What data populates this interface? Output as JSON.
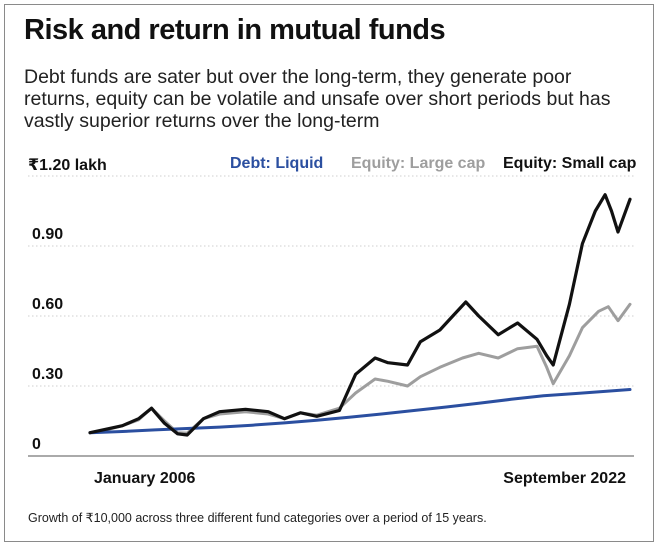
{
  "header": {
    "title": "Risk and return in mutual funds",
    "subtitle": "Debt funds are sater but over the long-term, they generate poor returns, equity can be volatile and unsafe over short periods but has vastly superior returns over the long-term"
  },
  "caption": "Growth of ₹10,000 across three different fund categories over a period of 15 years.",
  "chart_data": {
    "type": "line",
    "title": "Risk and return in mutual funds",
    "ylabel": "₹1.20 lakh",
    "ylim": [
      0,
      1.2
    ],
    "y_ticks": [
      0,
      0.3,
      0.6,
      0.9
    ],
    "y_tick_labels": [
      "0",
      "0.30",
      "0.60",
      "0.90"
    ],
    "top_tick_label": "₹1.20 lakh",
    "x_range": [
      2006.0,
      2022.67
    ],
    "x_tick_labels": [
      "January 2006",
      "September 2022"
    ],
    "grid": true,
    "legend": "top",
    "series": [
      {
        "name": "Debt: Liquid",
        "color": "#2b4fa0",
        "x": [
          2006.0,
          2007.0,
          2008.0,
          2009.0,
          2010.0,
          2011.0,
          2012.0,
          2013.0,
          2014.0,
          2015.0,
          2016.0,
          2017.0,
          2018.0,
          2019.0,
          2020.0,
          2021.0,
          2022.0,
          2022.67
        ],
        "values": [
          0.1,
          0.105,
          0.112,
          0.118,
          0.124,
          0.132,
          0.142,
          0.153,
          0.166,
          0.18,
          0.195,
          0.21,
          0.226,
          0.243,
          0.258,
          0.268,
          0.278,
          0.285
        ]
      },
      {
        "name": "Equity: Large cap",
        "color": "#9e9e9e",
        "x": [
          2006.0,
          2006.5,
          2007.0,
          2007.5,
          2007.9,
          2008.3,
          2008.7,
          2009.0,
          2009.5,
          2010.0,
          2010.8,
          2011.5,
          2012.0,
          2012.5,
          2013.0,
          2013.7,
          2014.2,
          2014.8,
          2015.2,
          2015.8,
          2016.2,
          2016.8,
          2017.5,
          2018.0,
          2018.6,
          2019.2,
          2019.8,
          2020.1,
          2020.3,
          2020.8,
          2021.2,
          2021.7,
          2022.0,
          2022.3,
          2022.67
        ],
        "values": [
          0.1,
          0.112,
          0.13,
          0.155,
          0.205,
          0.15,
          0.1,
          0.098,
          0.16,
          0.18,
          0.19,
          0.18,
          0.16,
          0.185,
          0.175,
          0.205,
          0.27,
          0.33,
          0.32,
          0.3,
          0.34,
          0.38,
          0.42,
          0.44,
          0.42,
          0.46,
          0.47,
          0.38,
          0.31,
          0.43,
          0.55,
          0.62,
          0.64,
          0.58,
          0.65
        ]
      },
      {
        "name": "Equity: Small cap",
        "color": "#111111",
        "x": [
          2006.0,
          2006.5,
          2007.0,
          2007.5,
          2007.9,
          2008.3,
          2008.7,
          2009.0,
          2009.5,
          2010.0,
          2010.8,
          2011.5,
          2012.0,
          2012.5,
          2013.0,
          2013.7,
          2014.2,
          2014.8,
          2015.2,
          2015.8,
          2016.2,
          2016.8,
          2017.2,
          2017.6,
          2018.0,
          2018.6,
          2019.2,
          2019.8,
          2020.1,
          2020.3,
          2020.8,
          2021.2,
          2021.6,
          2021.9,
          2022.1,
          2022.3,
          2022.67
        ],
        "values": [
          0.1,
          0.115,
          0.13,
          0.16,
          0.205,
          0.14,
          0.095,
          0.09,
          0.16,
          0.19,
          0.2,
          0.19,
          0.16,
          0.185,
          0.17,
          0.195,
          0.35,
          0.42,
          0.4,
          0.39,
          0.49,
          0.54,
          0.6,
          0.66,
          0.6,
          0.52,
          0.57,
          0.5,
          0.43,
          0.39,
          0.65,
          0.91,
          1.05,
          1.12,
          1.05,
          0.96,
          1.1
        ]
      }
    ]
  }
}
